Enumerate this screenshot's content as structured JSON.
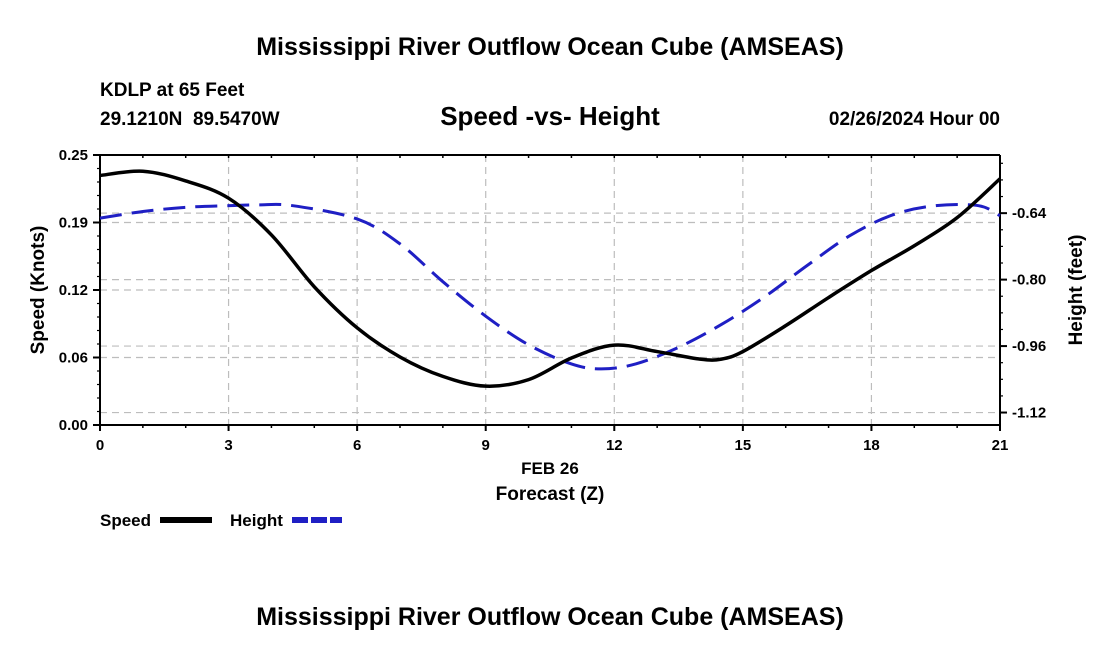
{
  "chart_data": {
    "type": "line",
    "title": "Mississippi River Outflow Ocean Cube (AMSEAS)",
    "title_repeat": "Mississippi River Outflow Ocean Cube (AMSEAS)",
    "subtitle": "Speed -vs- Height",
    "station_line1": "KDLP at 65 Feet",
    "station_line2": "29.1210N  89.5470W",
    "date_label": "02/26/2024 Hour 00",
    "xlabel": "Forecast (Z)",
    "xdate": "FEB 26",
    "ylabel_left": "Speed (Knots)",
    "ylabel_right": "Height (feet)",
    "xlim": [
      0,
      21
    ],
    "ylim_left": [
      0,
      0.25
    ],
    "ylim_right": [
      -1.15,
      -0.5
    ],
    "x_ticks": [
      0,
      3,
      6,
      9,
      12,
      15,
      18,
      21
    ],
    "x_tick_labels": [
      "0",
      "3",
      "6",
      "9",
      "12",
      "15",
      "18",
      "21"
    ],
    "left_ticks": [
      0,
      0.0625,
      0.125,
      0.1875,
      0.25
    ],
    "left_tick_labels": [
      "0.00",
      "0.06",
      "0.12",
      "0.19",
      "0.25"
    ],
    "right_ticks": [
      -0.64,
      -0.8,
      -0.96,
      -1.12
    ],
    "right_tick_labels": [
      "-0.64",
      "-0.80",
      "-0.96",
      "-1.12"
    ],
    "grid": true,
    "legend_position": "bottom-left",
    "series": [
      {
        "name": "Speed",
        "axis": "left",
        "color": "#000000",
        "dash": "solid",
        "x": [
          0,
          1,
          2,
          3,
          4,
          5,
          6,
          7,
          8,
          9,
          10,
          11,
          12,
          13,
          14,
          14.5,
          15,
          16,
          17,
          18,
          19,
          20,
          21
        ],
        "values": [
          0.231,
          0.235,
          0.226,
          0.21,
          0.176,
          0.128,
          0.09,
          0.063,
          0.045,
          0.036,
          0.042,
          0.062,
          0.074,
          0.068,
          0.061,
          0.061,
          0.068,
          0.092,
          0.118,
          0.143,
          0.166,
          0.192,
          0.228
        ]
      },
      {
        "name": "Height",
        "axis": "right",
        "color": "#1f1fc4",
        "dash": "dashed",
        "x": [
          0,
          1,
          2,
          3,
          3.7,
          4.5,
          6,
          7,
          8,
          9,
          10,
          11,
          11.7,
          12.5,
          13.5,
          14.5,
          15.5,
          16.5,
          17.5,
          18.5,
          19.5,
          20.5,
          21
        ],
        "values": [
          -0.652,
          -0.636,
          -0.626,
          -0.622,
          -0.62,
          -0.622,
          -0.654,
          -0.714,
          -0.805,
          -0.888,
          -0.957,
          -1.003,
          -1.015,
          -1.003,
          -0.963,
          -0.908,
          -0.842,
          -0.766,
          -0.694,
          -0.644,
          -0.622,
          -0.622,
          -0.646
        ]
      }
    ]
  }
}
